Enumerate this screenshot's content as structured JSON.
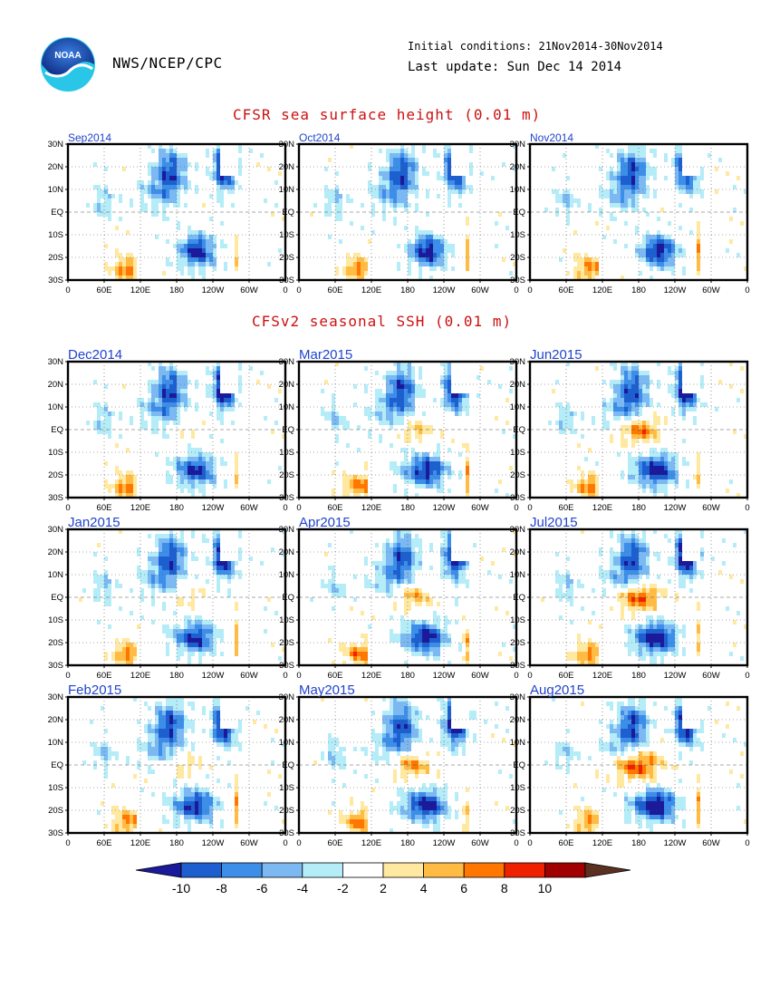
{
  "header": {
    "logo_text": "NOAA",
    "agency": "NWS/NCEP/CPC",
    "initial_conditions": "Initial conditions: 21Nov2014-30Nov2014",
    "last_update": "Last update: Sun Dec 14 2014"
  },
  "section_titles": {
    "analysis": "CFSR sea surface height (0.01 m)",
    "forecast": "CFSv2 seasonal SSH (0.01 m)"
  },
  "axis": {
    "lat_ticks": [
      "30N",
      "20N",
      "10N",
      "EQ",
      "10S",
      "20S",
      "30S"
    ],
    "lon_ticks": [
      "0",
      "60E",
      "120E",
      "180",
      "120W",
      "60W",
      "0"
    ]
  },
  "colors": {
    "section_title": "#cc1111",
    "panel_label": "#2244cc",
    "scale": [
      "#1a1a9a",
      "#1e5fd0",
      "#3c8ee8",
      "#7cb8f2",
      "#b4ecf8",
      "#ffffff",
      "#ffe8a0",
      "#ffbb44",
      "#ff7700",
      "#ee2200",
      "#a00000",
      "#5a3020"
    ]
  },
  "chart_data": [
    {
      "type": "heatmap",
      "group": "CFSR sea surface height (0.01 m)",
      "panels": [
        "Sep2014",
        "Oct2014",
        "Nov2014"
      ],
      "variable": "sea surface height anomaly",
      "units": "0.01 m",
      "lon_range": [
        0,
        360
      ],
      "lat_range": [
        -30,
        30
      ],
      "grid_lines": true,
      "features": {
        "west_pacific_north_negative": -10,
        "east_pacific_south_negative": -8,
        "eastern_boundary_positive": 8
      }
    },
    {
      "type": "heatmap",
      "group": "CFSv2 seasonal SSH (0.01 m)",
      "panels": [
        "Dec2014",
        "Jan2015",
        "Feb2015",
        "Mar2015",
        "Apr2015",
        "May2015",
        "Jun2015",
        "Jul2015",
        "Aug2015"
      ],
      "variable": "sea surface height anomaly",
      "units": "0.01 m",
      "lon_range": [
        0,
        360
      ],
      "lat_range": [
        -30,
        30
      ],
      "grid_lines": true,
      "features": {
        "equatorial_pacific_positive_peak": 10,
        "equatorial_pacific_positive_peak_month": "Aug2015",
        "south_pacific_negative": -10
      }
    }
  ],
  "colorbar": {
    "ticks": [
      "-10",
      "-8",
      "-6",
      "-4",
      "-2",
      "2",
      "4",
      "6",
      "8",
      "10"
    ],
    "levels": [
      -10,
      -8,
      -6,
      -4,
      -2,
      2,
      4,
      6,
      8,
      10
    ]
  }
}
